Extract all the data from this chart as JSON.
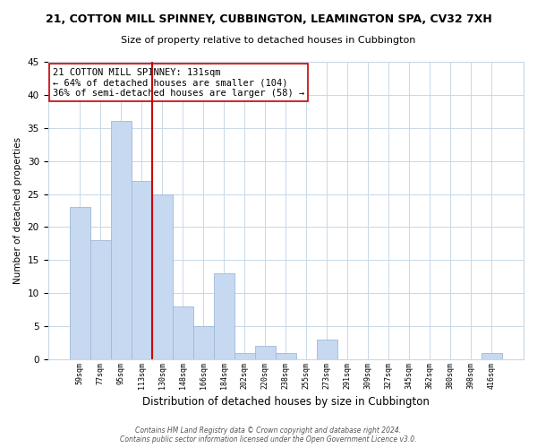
{
  "title": "21, COTTON MILL SPINNEY, CUBBINGTON, LEAMINGTON SPA, CV32 7XH",
  "subtitle": "Size of property relative to detached houses in Cubbington",
  "xlabel": "Distribution of detached houses by size in Cubbington",
  "ylabel": "Number of detached properties",
  "bar_labels": [
    "59sqm",
    "77sqm",
    "95sqm",
    "113sqm",
    "130sqm",
    "148sqm",
    "166sqm",
    "184sqm",
    "202sqm",
    "220sqm",
    "238sqm",
    "255sqm",
    "273sqm",
    "291sqm",
    "309sqm",
    "327sqm",
    "345sqm",
    "362sqm",
    "380sqm",
    "398sqm",
    "416sqm"
  ],
  "bar_values": [
    23,
    18,
    36,
    27,
    25,
    8,
    5,
    13,
    1,
    2,
    1,
    0,
    3,
    0,
    0,
    0,
    0,
    0,
    0,
    0,
    1
  ],
  "bar_color": "#c6d9f0",
  "bar_edge_color": "#a0b8d8",
  "ref_line_color": "#cc0000",
  "ylim": [
    0,
    45
  ],
  "yticks": [
    0,
    5,
    10,
    15,
    20,
    25,
    30,
    35,
    40,
    45
  ],
  "annotation_line1": "21 COTTON MILL SPINNEY: 131sqm",
  "annotation_line2": "← 64% of detached houses are smaller (104)",
  "annotation_line3": "36% of semi-detached houses are larger (58) →",
  "annotation_box_color": "#ffffff",
  "annotation_box_edge": "#cc0000",
  "footer_line1": "Contains HM Land Registry data © Crown copyright and database right 2024.",
  "footer_line2": "Contains public sector information licensed under the Open Government Licence v3.0.",
  "background_color": "#ffffff",
  "grid_color": "#c8d8e8"
}
